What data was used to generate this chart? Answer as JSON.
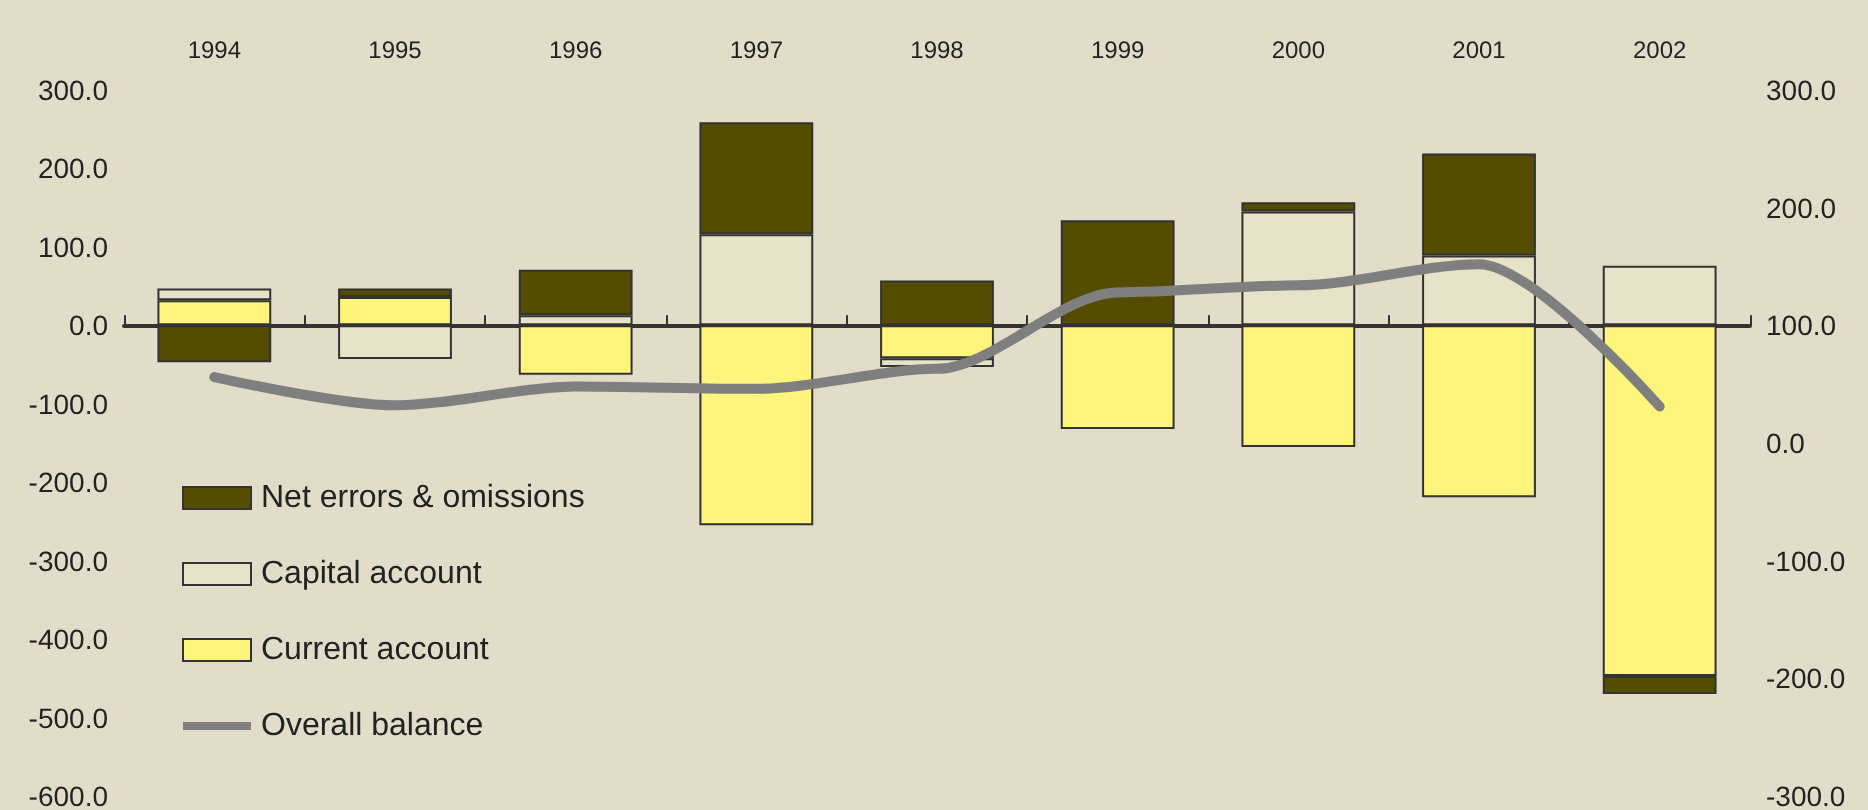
{
  "chart_data": {
    "type": "bar",
    "stacked": true,
    "categories": [
      "1994",
      "1995",
      "1996",
      "1997",
      "1998",
      "1999",
      "2000",
      "2001",
      "2002"
    ],
    "series": [
      {
        "name": "Current account",
        "color": "#fff57c",
        "values": [
          32,
          36,
          -63,
          -255,
          -42,
          -132,
          -155,
          -219,
          -447
        ]
      },
      {
        "name": "Capital account",
        "color": "#e6e3c8",
        "values": [
          15,
          -43,
          13,
          116,
          -11,
          null,
          145,
          89,
          76
        ]
      },
      {
        "name": "Net errors & omissions",
        "color": "#544d00",
        "values": [
          -47,
          11,
          58,
          143,
          57,
          134,
          12,
          130,
          -23
        ]
      },
      {
        "name": "Overall balance",
        "type": "line",
        "axis": "y2",
        "color": "#7f7f7f",
        "marker": "none",
        "values": [
          56,
          32,
          48,
          46,
          63,
          128,
          134,
          152,
          31
        ]
      }
    ],
    "ylim": [
      -600,
      300
    ],
    "yticks": [
      {
        "value": 300,
        "label": "300.0"
      },
      {
        "value": 200,
        "label": "200.0"
      },
      {
        "value": 100,
        "label": "100.0"
      },
      {
        "value": 0,
        "label": "0.0"
      },
      {
        "value": -100,
        "label": "-100.0"
      },
      {
        "value": -200,
        "label": "-200.0"
      },
      {
        "value": -300,
        "label": "-300.0"
      },
      {
        "value": -400,
        "label": "-400.0"
      },
      {
        "value": -500,
        "label": "-500.0"
      },
      {
        "value": -600,
        "label": "-600.0"
      }
    ],
    "y2lim": [
      -300,
      300
    ],
    "y2ticks": [
      {
        "value": 300,
        "label": "300.0"
      },
      {
        "value": 200,
        "label": "200.0"
      },
      {
        "value": 100,
        "label": "100.0"
      },
      {
        "value": 0,
        "label": "0.0"
      },
      {
        "value": -100,
        "label": "-100.0"
      },
      {
        "value": -200,
        "label": "-200.0"
      },
      {
        "value": -300,
        "label": "-300.0"
      }
    ],
    "legend": "bottom left"
  }
}
